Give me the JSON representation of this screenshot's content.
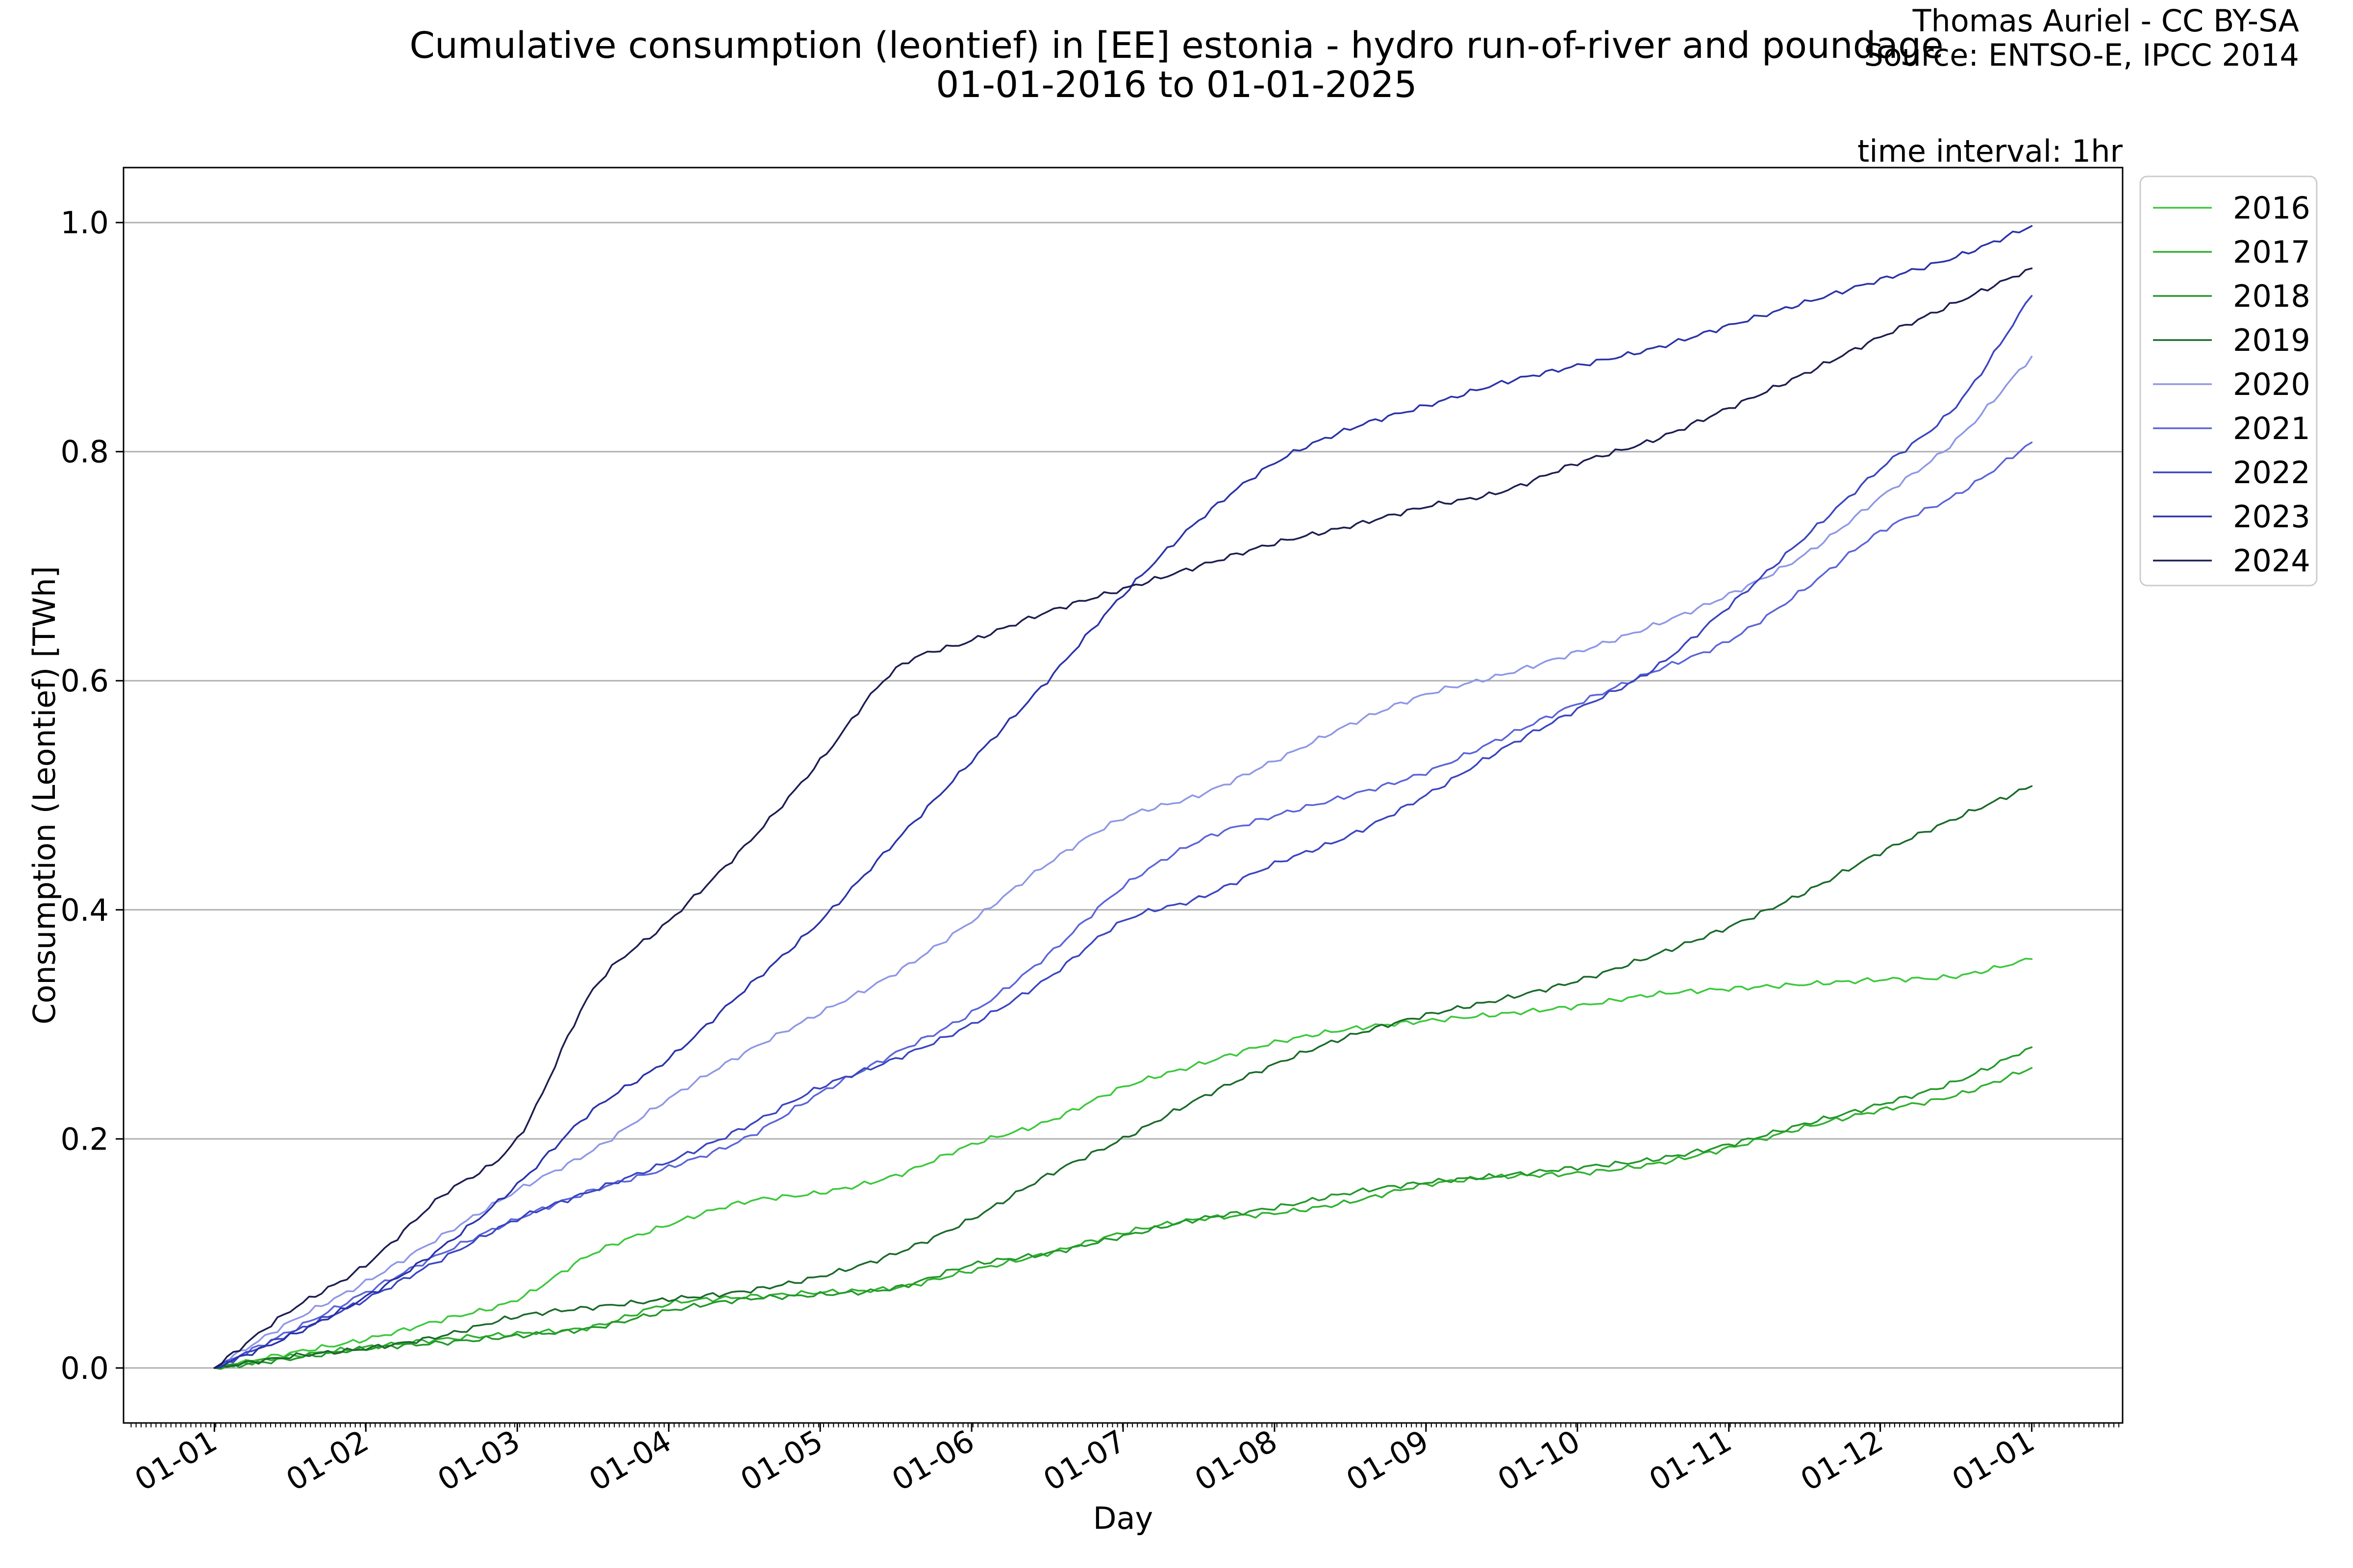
{
  "header": {
    "title_line1": "Cumulative consumption (leontief) in [EE] estonia - hydro run-of-river and poundage",
    "title_line2": "01-01-2016 to 01-01-2025",
    "credit_line1": "Thomas Auriel - CC BY-SA",
    "credit_line2": "Source: ENTSO-E, IPCC 2014",
    "time_interval": "time interval: 1hr"
  },
  "chart_data": {
    "type": "line",
    "xlabel": "Day",
    "ylabel": "Consumption (Leontief) [TWh]",
    "x_ticks": [
      "01-01",
      "01-02",
      "01-03",
      "01-04",
      "01-05",
      "01-06",
      "01-07",
      "01-08",
      "01-09",
      "01-10",
      "01-11",
      "01-12",
      "01-01"
    ],
    "y_ticks": [
      "0.0",
      "0.2",
      "0.4",
      "0.6",
      "0.8",
      "1.0"
    ],
    "xlim": [
      -0.6,
      12.6
    ],
    "ylim": [
      -0.048,
      1.048
    ],
    "grid": "horizontal",
    "legend_position": "outside-right",
    "x": [
      0,
      0.5,
      1,
      1.5,
      2,
      2.5,
      3,
      3.5,
      4,
      4.5,
      5,
      5.5,
      6,
      6.5,
      7,
      7.5,
      8,
      8.5,
      9,
      9.5,
      10,
      10.5,
      11,
      11.5,
      12
    ],
    "series": [
      {
        "name": "2016",
        "color": "#3cc83c",
        "values": [
          0.0,
          0.013,
          0.025,
          0.042,
          0.06,
          0.1,
          0.125,
          0.145,
          0.153,
          0.168,
          0.195,
          0.215,
          0.245,
          0.265,
          0.284,
          0.296,
          0.303,
          0.309,
          0.316,
          0.326,
          0.331,
          0.335,
          0.339,
          0.342,
          0.357
        ]
      },
      {
        "name": "2017",
        "color": "#2fb02f",
        "values": [
          0.0,
          0.01,
          0.018,
          0.025,
          0.03,
          0.036,
          0.056,
          0.062,
          0.066,
          0.07,
          0.085,
          0.1,
          0.118,
          0.13,
          0.135,
          0.145,
          0.16,
          0.167,
          0.17,
          0.178,
          0.192,
          0.21,
          0.225,
          0.238,
          0.262
        ]
      },
      {
        "name": "2018",
        "color": "#22982a",
        "values": [
          0.0,
          0.008,
          0.017,
          0.022,
          0.028,
          0.035,
          0.05,
          0.06,
          0.064,
          0.07,
          0.09,
          0.1,
          0.115,
          0.13,
          0.14,
          0.153,
          0.162,
          0.168,
          0.175,
          0.182,
          0.195,
          0.213,
          0.23,
          0.25,
          0.28
        ]
      },
      {
        "name": "2019",
        "color": "#1a6a2a",
        "values": [
          0.0,
          0.01,
          0.017,
          0.028,
          0.045,
          0.053,
          0.06,
          0.067,
          0.08,
          0.1,
          0.13,
          0.168,
          0.2,
          0.235,
          0.265,
          0.29,
          0.308,
          0.322,
          0.338,
          0.36,
          0.385,
          0.415,
          0.45,
          0.48,
          0.508
        ]
      },
      {
        "name": "2020",
        "color": "#8e97e6",
        "values": [
          0.0,
          0.04,
          0.075,
          0.115,
          0.155,
          0.19,
          0.235,
          0.275,
          0.31,
          0.345,
          0.39,
          0.44,
          0.48,
          0.5,
          0.53,
          0.562,
          0.588,
          0.605,
          0.625,
          0.648,
          0.675,
          0.71,
          0.76,
          0.81,
          0.883
        ]
      },
      {
        "name": "2021",
        "color": "#5a64d8",
        "values": [
          0.0,
          0.032,
          0.066,
          0.1,
          0.13,
          0.155,
          0.175,
          0.2,
          0.24,
          0.275,
          0.31,
          0.36,
          0.42,
          0.46,
          0.482,
          0.5,
          0.52,
          0.55,
          0.58,
          0.608,
          0.635,
          0.68,
          0.73,
          0.762,
          0.808
        ]
      },
      {
        "name": "2022",
        "color": "#3a44c0",
        "values": [
          0.0,
          0.03,
          0.06,
          0.095,
          0.13,
          0.155,
          0.18,
          0.21,
          0.245,
          0.27,
          0.3,
          0.34,
          0.39,
          0.41,
          0.44,
          0.465,
          0.5,
          0.54,
          0.575,
          0.61,
          0.665,
          0.725,
          0.785,
          0.84,
          0.936
        ]
      },
      {
        "name": "2023",
        "color": "#2a33a8",
        "values": [
          0.0,
          0.028,
          0.062,
          0.105,
          0.16,
          0.225,
          0.27,
          0.33,
          0.39,
          0.46,
          0.53,
          0.6,
          0.675,
          0.74,
          0.79,
          0.82,
          0.84,
          0.86,
          0.875,
          0.89,
          0.91,
          0.93,
          0.95,
          0.97,
          0.997
        ]
      },
      {
        "name": "2024",
        "color": "#1c1d50",
        "values": [
          0.0,
          0.05,
          0.09,
          0.15,
          0.2,
          0.33,
          0.39,
          0.455,
          0.53,
          0.61,
          0.635,
          0.66,
          0.68,
          0.7,
          0.72,
          0.735,
          0.752,
          0.765,
          0.79,
          0.81,
          0.838,
          0.868,
          0.9,
          0.93,
          0.96
        ]
      }
    ]
  }
}
